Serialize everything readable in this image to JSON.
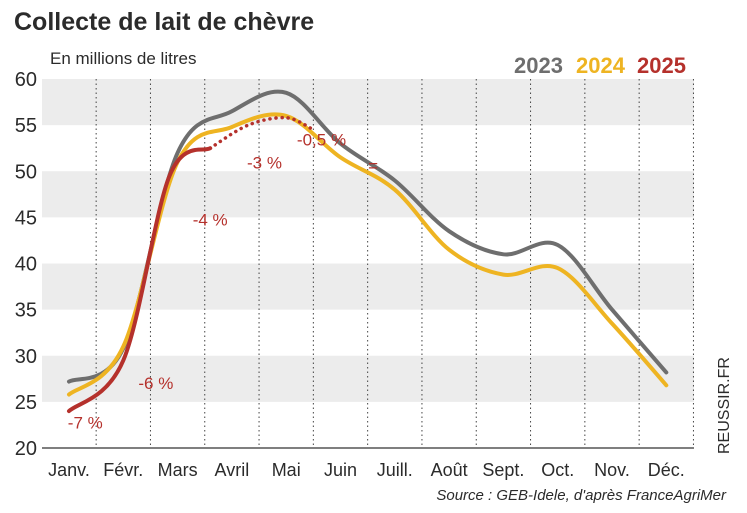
{
  "chart_data": {
    "type": "line",
    "title": "Collecte de lait de chèvre",
    "subtitle": "En millions de litres",
    "ylim": [
      20,
      60
    ],
    "yticks": [
      20,
      25,
      30,
      35,
      40,
      45,
      50,
      55,
      60
    ],
    "categories": [
      "Janv.",
      "Févr.",
      "Mars",
      "Avril",
      "Mai",
      "Juin",
      "Juill.",
      "Août",
      "Sept.",
      "Oct.",
      "Nov.",
      "Déc."
    ],
    "series": [
      {
        "name": "2023",
        "color": "#6e6e6e",
        "x": [
          0,
          1,
          2,
          3,
          4,
          5,
          6,
          7,
          8,
          9,
          10,
          11
        ],
        "values": [
          27.2,
          30.8,
          52.0,
          56.5,
          58.5,
          53.0,
          49.0,
          43.5,
          41.0,
          42.0,
          35.0,
          28.2
        ]
      },
      {
        "name": "2024",
        "color": "#eeb422",
        "x": [
          0,
          1,
          2,
          3,
          4,
          5,
          6,
          7,
          8,
          9,
          10,
          11
        ],
        "values": [
          25.8,
          31.0,
          51.0,
          54.8,
          56.0,
          51.5,
          48.0,
          41.5,
          38.8,
          39.5,
          33.5,
          26.8
        ]
      },
      {
        "name": "2025",
        "color": "#b5312c",
        "x": [
          0,
          1,
          1.85,
          2.6
        ],
        "values": [
          24.0,
          29.5,
          49.5,
          52.5
        ],
        "dotted": {
          "x": [
            2.6,
            3.3,
            4.0,
            4.5
          ],
          "values": [
            52.5,
            55.0,
            55.8,
            54.5
          ]
        }
      }
    ],
    "annotations": [
      {
        "text": "-7 %",
        "x": 0.3,
        "y": 22.1
      },
      {
        "text": "-6 %",
        "x": 1.6,
        "y": 26.4
      },
      {
        "text": "-4 %",
        "x": 2.6,
        "y": 44.1
      },
      {
        "text": "-3 %",
        "x": 3.6,
        "y": 50.3
      },
      {
        "text": "-0,5 %",
        "x": 4.65,
        "y": 52.8
      },
      {
        "text": "=",
        "x": 5.6,
        "y": 50.0
      }
    ],
    "legend": [
      "2023",
      "2024",
      "2025"
    ],
    "legend_position": "top-right",
    "source": "Source : GEB-Idele, d'après FranceAgriMer",
    "credit": "REUSSIR.FR",
    "grid": "alternating horizontal bands"
  }
}
